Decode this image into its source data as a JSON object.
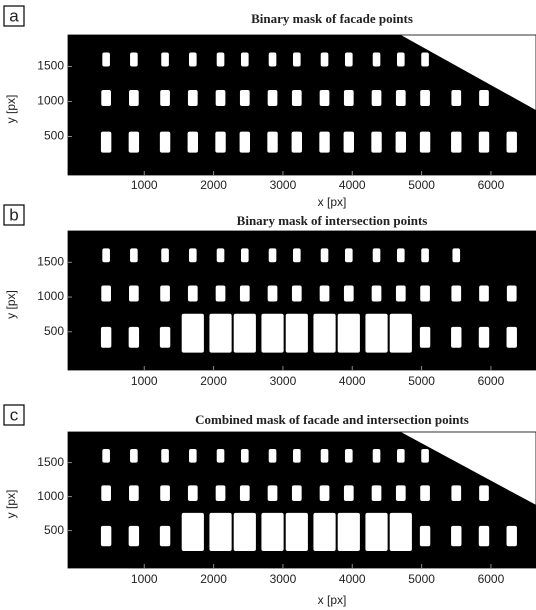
{
  "chart_data": [
    {
      "type": "image",
      "label": "a",
      "title": "Binary mask of facade points",
      "xlabel": "x [px]",
      "ylabel": "y [px]",
      "xlim": [
        -100,
        6650
      ],
      "ylim": [
        -50,
        1950
      ],
      "xticks": [
        1000,
        2000,
        3000,
        4000,
        5000,
        6000
      ],
      "yticks": [
        500,
        1000,
        1500
      ]
    },
    {
      "type": "image",
      "label": "b",
      "title": "Binary mask of intersection points",
      "ylabel": "y [px]",
      "xlim": [
        -100,
        6650
      ],
      "ylim": [
        -50,
        1950
      ],
      "xticks": [
        1000,
        2000,
        3000,
        4000,
        5000,
        6000
      ],
      "yticks": [
        500,
        1000,
        1500
      ]
    },
    {
      "type": "image",
      "label": "c",
      "title": "Combined mask of facade and intersection points",
      "xlabel": "x [px]",
      "ylabel": "y [px]",
      "xlim": [
        -100,
        6650
      ],
      "ylim": [
        -50,
        1950
      ],
      "xticks": [
        1000,
        2000,
        3000,
        4000,
        5000,
        6000
      ],
      "yticks": [
        500,
        1000,
        1500
      ]
    }
  ]
}
